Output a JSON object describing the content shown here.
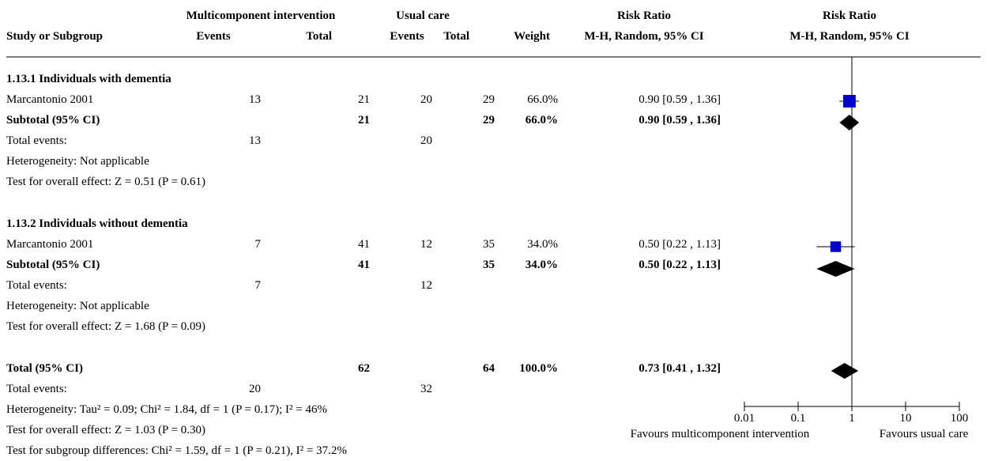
{
  "header": {
    "group1": "Multicomponent intervention",
    "group2": "Usual care",
    "rr_top": "Risk Ratio",
    "rr_plot_top": "Risk Ratio",
    "study": "Study or Subgroup",
    "events1": "Events",
    "total1": "Total",
    "events2": "Events",
    "total2": "Total",
    "weight": "Weight",
    "method": "M-H, Random, 95% CI",
    "method_plot": "M-H, Random, 95% CI"
  },
  "sub1": {
    "title": "1.13.1 Individuals with dementia",
    "study": {
      "name": "Marcantonio 2001",
      "e1": "13",
      "t1": "21",
      "e2": "20",
      "t2": "29",
      "weight": "66.0%",
      "ci": "0.90 [0.59 , 1.36]"
    },
    "subtotal": {
      "label": "Subtotal (95% CI)",
      "t1": "21",
      "t2": "29",
      "weight": "66.0%",
      "ci": "0.90 [0.59 , 1.36]"
    },
    "events": {
      "label": "Total events:",
      "e1": "13",
      "e2": "20"
    },
    "het": "Heterogeneity: Not applicable",
    "effect": "Test for overall effect: Z = 0.51 (P = 0.61)"
  },
  "sub2": {
    "title": "1.13.2 Individuals without dementia",
    "study": {
      "name": "Marcantonio 2001",
      "e1": "7",
      "t1": "41",
      "e2": "12",
      "t2": "35",
      "weight": "34.0%",
      "ci": "0.50 [0.22 , 1.13]"
    },
    "subtotal": {
      "label": "Subtotal (95% CI)",
      "t1": "41",
      "t2": "35",
      "weight": "34.0%",
      "ci": "0.50 [0.22 , 1.13]"
    },
    "events": {
      "label": "Total events:",
      "e1": "7",
      "e2": "12"
    },
    "het": "Heterogeneity: Not applicable",
    "effect": "Test for overall effect: Z = 1.68 (P = 0.09)"
  },
  "total": {
    "label": "Total (95% CI)",
    "t1": "62",
    "t2": "64",
    "weight": "100.0%",
    "ci": "0.73 [0.41 , 1.32]",
    "events_label": "Total events:",
    "e1": "20",
    "e2": "32",
    "het": "Heterogeneity: Tau² = 0.09; Chi² = 1.84, df = 1 (P = 0.17); I² = 46%",
    "effect": "Test for overall effect: Z = 1.03 (P = 0.30)",
    "subgroup": "Test for subgroup differences: Chi² = 1.59, df = 1 (P = 0.21), I² = 37.2%"
  },
  "axis": {
    "favours_left": "Favours multicomponent intervention",
    "favours_right": "Favours usual care"
  },
  "chart_data": {
    "type": "forest",
    "scale": "log",
    "xlim": [
      0.01,
      100
    ],
    "ticks": [
      {
        "value": 0.01,
        "label": "0.01"
      },
      {
        "value": 0.1,
        "label": "0.1"
      },
      {
        "value": 1,
        "label": "1"
      },
      {
        "value": 10,
        "label": "10"
      },
      {
        "value": 100,
        "label": "100"
      }
    ],
    "null_line": 1,
    "study_color": "#0000cc",
    "diamond_color": "#000000",
    "studies": [
      {
        "row": "sub1",
        "rr": 0.9,
        "lo": 0.59,
        "hi": 1.36,
        "weight": 66.0
      },
      {
        "row": "sub2",
        "rr": 0.5,
        "lo": 0.22,
        "hi": 1.13,
        "weight": 34.0
      }
    ],
    "diamonds": [
      {
        "row": "sub1",
        "rr": 0.9,
        "lo": 0.59,
        "hi": 1.36
      },
      {
        "row": "sub2",
        "rr": 0.5,
        "lo": 0.22,
        "hi": 1.13
      },
      {
        "row": "total",
        "rr": 0.73,
        "lo": 0.41,
        "hi": 1.32
      }
    ]
  }
}
